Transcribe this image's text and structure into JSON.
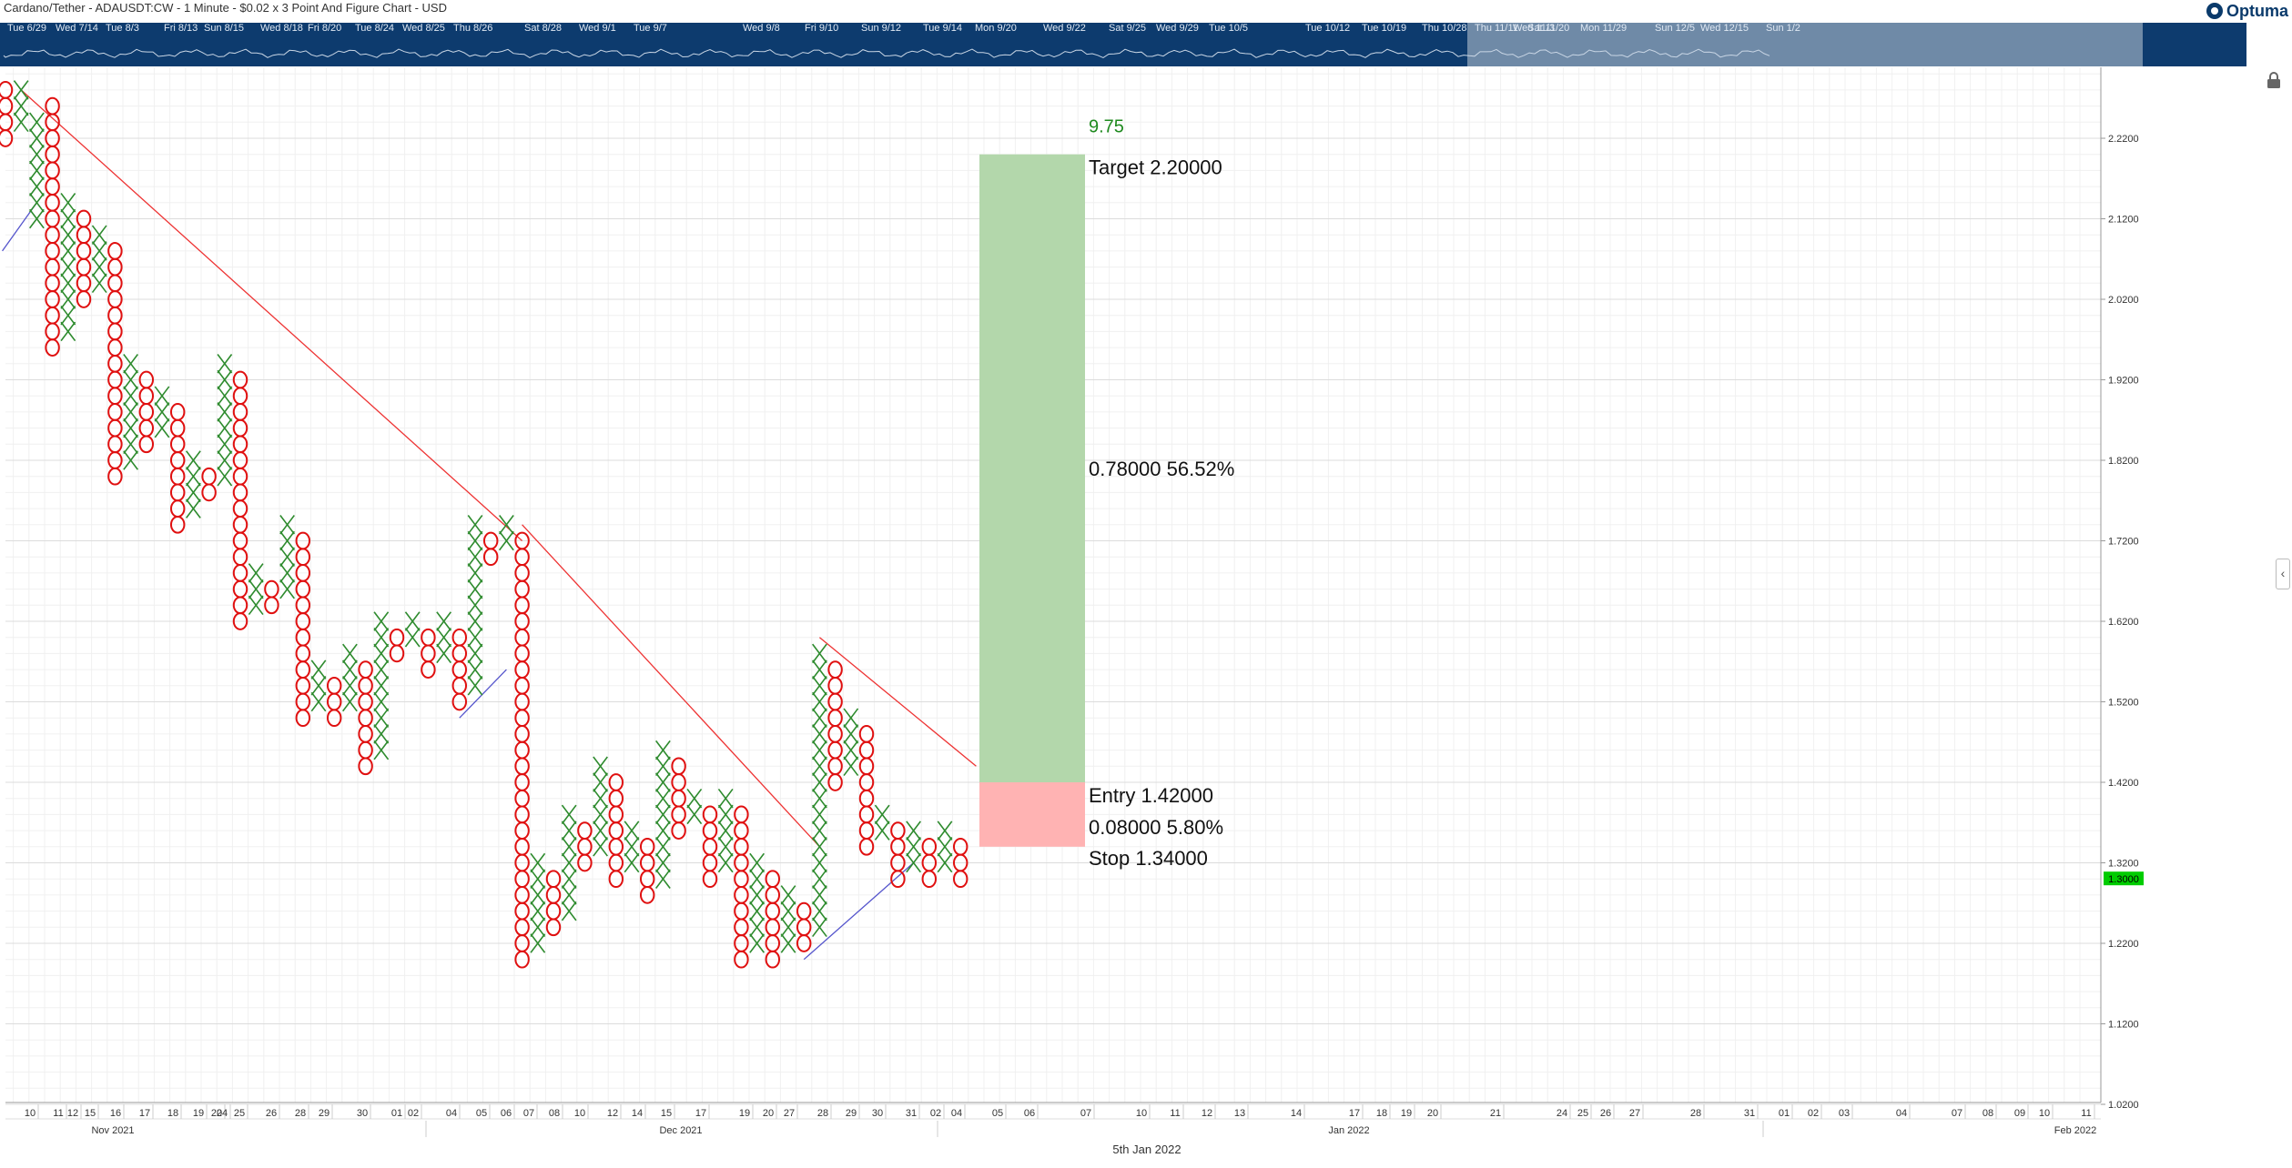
{
  "title": "Cardano/Tether - ADAUSDT:CW - 1 Minute - $0.02 x 3 Point And Figure Chart - USD",
  "logo": "Optuma",
  "navigator_labels": [
    "Tue 6/29",
    "Wed 7/14",
    "Tue 8/3",
    "Fri 8/13",
    "Sun 8/15",
    "Wed 8/18",
    "Fri 8/20",
    "Tue 8/24",
    "Wed 8/25",
    "Thu 8/26",
    "Sat 8/28",
    "Wed 9/1",
    "Tue 9/7",
    "Wed 9/8",
    "Fri 9/10",
    "Sun 9/12",
    "Tue 9/14",
    "Mon 9/20",
    "Wed 9/22",
    "Sat 9/25",
    "Wed 9/29",
    "Tue 10/5",
    "Tue 10/12",
    "Tue 10/19",
    "Thu 10/28",
    "Wed 11/3",
    "Thu 11/11",
    "Sat 11/20",
    "Mon 11/29",
    "Sun 12/5",
    "Wed 12/15",
    "Sun 1/2"
  ],
  "date_footer": "5th Jan 2022",
  "current_price": "1.3000",
  "chart_data": {
    "type": "point-and-figure",
    "box_size": 0.02,
    "reversal": 3,
    "y_axis": {
      "ticks": [
        2.22,
        2.12,
        2.02,
        1.92,
        1.82,
        1.72,
        1.62,
        1.52,
        1.42,
        1.32,
        1.22,
        1.12,
        1.02
      ],
      "tick_labels": [
        "2.2200",
        "2.1200",
        "2.0200",
        "1.9200",
        "1.8200",
        "1.7200",
        "1.6200",
        "1.5200",
        "1.4200",
        "1.3200",
        "1.2200",
        "1.1200",
        "1.0200"
      ]
    },
    "x_axis": {
      "day_labels": [
        "10",
        "11",
        "12",
        "15",
        "16",
        "17",
        "18",
        "19",
        "20",
        "24",
        "25",
        "26",
        "28",
        "29",
        "30",
        "01",
        "02",
        "04",
        "05",
        "06",
        "07",
        "08",
        "10",
        "12",
        "14",
        "15",
        "17",
        "19",
        "20",
        "27",
        "28",
        "29",
        "30",
        "31",
        "02",
        "04",
        "05",
        "06",
        "07",
        "10",
        "11",
        "12",
        "13",
        "14",
        "17",
        "18",
        "19",
        "20",
        "21",
        "24",
        "25",
        "26",
        "27",
        "28",
        "31",
        "01",
        "02",
        "03",
        "04",
        "07",
        "08",
        "09",
        "10",
        "11"
      ],
      "month_labels": [
        "Nov 2021",
        "Dec 2021",
        "Jan 2022",
        "Feb 2022"
      ]
    },
    "columns": [
      {
        "type": "O",
        "high": 2.28,
        "low": 2.22
      },
      {
        "type": "X",
        "low": 2.24,
        "high": 2.28
      },
      {
        "type": "X",
        "low": 2.12,
        "high": 2.24
      },
      {
        "type": "O",
        "high": 2.26,
        "low": 1.96
      },
      {
        "type": "X",
        "low": 1.98,
        "high": 2.14
      },
      {
        "type": "O",
        "high": 2.12,
        "low": 2.02
      },
      {
        "type": "X",
        "low": 2.04,
        "high": 2.1
      },
      {
        "type": "O",
        "high": 2.08,
        "low": 1.8
      },
      {
        "type": "X",
        "low": 1.82,
        "high": 1.94
      },
      {
        "type": "O",
        "high": 1.92,
        "low": 1.84
      },
      {
        "type": "X",
        "low": 1.86,
        "high": 1.9
      },
      {
        "type": "O",
        "high": 1.88,
        "low": 1.74
      },
      {
        "type": "X",
        "low": 1.76,
        "high": 1.82
      },
      {
        "type": "O",
        "high": 1.8,
        "low": 1.78
      },
      {
        "type": "X",
        "low": 1.8,
        "high": 1.94
      },
      {
        "type": "O",
        "high": 1.92,
        "low": 1.62
      },
      {
        "type": "X",
        "low": 1.64,
        "high": 1.68
      },
      {
        "type": "O",
        "high": 1.66,
        "low": 1.64
      },
      {
        "type": "X",
        "low": 1.66,
        "high": 1.74
      },
      {
        "type": "O",
        "high": 1.72,
        "low": 1.5
      },
      {
        "type": "X",
        "low": 1.52,
        "high": 1.56
      },
      {
        "type": "O",
        "high": 1.54,
        "low": 1.5
      },
      {
        "type": "X",
        "low": 1.52,
        "high": 1.58
      },
      {
        "type": "O",
        "high": 1.56,
        "low": 1.44
      },
      {
        "type": "X",
        "low": 1.46,
        "high": 1.62
      },
      {
        "type": "O",
        "high": 1.6,
        "low": 1.58
      },
      {
        "type": "X",
        "low": 1.6,
        "high": 1.62
      },
      {
        "type": "O",
        "high": 1.6,
        "low": 1.56
      },
      {
        "type": "X",
        "low": 1.58,
        "high": 1.62
      },
      {
        "type": "O",
        "high": 1.6,
        "low": 1.52
      },
      {
        "type": "X",
        "low": 1.54,
        "high": 1.74
      },
      {
        "type": "O",
        "high": 1.72,
        "low": 1.7
      },
      {
        "type": "X",
        "low": 1.72,
        "high": 1.74
      },
      {
        "type": "O",
        "high": 1.72,
        "low": 1.2
      },
      {
        "type": "X",
        "low": 1.22,
        "high": 1.32
      },
      {
        "type": "O",
        "high": 1.3,
        "low": 1.24
      },
      {
        "type": "X",
        "low": 1.26,
        "high": 1.38
      },
      {
        "type": "O",
        "high": 1.36,
        "low": 1.32
      },
      {
        "type": "X",
        "low": 1.34,
        "high": 1.44
      },
      {
        "type": "O",
        "high": 1.42,
        "low": 1.3
      },
      {
        "type": "X",
        "low": 1.32,
        "high": 1.36
      },
      {
        "type": "O",
        "high": 1.34,
        "low": 1.28
      },
      {
        "type": "X",
        "low": 1.3,
        "high": 1.46
      },
      {
        "type": "O",
        "high": 1.44,
        "low": 1.36
      },
      {
        "type": "X",
        "low": 1.38,
        "high": 1.4
      },
      {
        "type": "O",
        "high": 1.38,
        "low": 1.3
      },
      {
        "type": "X",
        "low": 1.32,
        "high": 1.4
      },
      {
        "type": "O",
        "high": 1.38,
        "low": 1.2
      },
      {
        "type": "X",
        "low": 1.22,
        "high": 1.32
      },
      {
        "type": "O",
        "high": 1.3,
        "low": 1.2
      },
      {
        "type": "X",
        "low": 1.22,
        "high": 1.28
      },
      {
        "type": "O",
        "high": 1.26,
        "low": 1.22
      },
      {
        "type": "X",
        "low": 1.24,
        "high": 1.58
      },
      {
        "type": "O",
        "high": 1.56,
        "low": 1.42
      },
      {
        "type": "X",
        "low": 1.44,
        "high": 1.5
      },
      {
        "type": "O",
        "high": 1.48,
        "low": 1.34
      },
      {
        "type": "X",
        "low": 1.36,
        "high": 1.38
      },
      {
        "type": "O",
        "high": 1.36,
        "low": 1.3
      },
      {
        "type": "X",
        "low": 1.32,
        "high": 1.36
      },
      {
        "type": "O",
        "high": 1.34,
        "low": 1.3
      },
      {
        "type": "X",
        "low": 1.32,
        "high": 1.36
      },
      {
        "type": "O",
        "high": 1.34,
        "low": 1.3
      }
    ],
    "trendlines": [
      {
        "color": "red",
        "from": {
          "col": 1,
          "price": 2.28
        },
        "to": {
          "col": 33,
          "price": 1.72
        }
      },
      {
        "color": "red",
        "from": {
          "col": 33,
          "price": 1.74
        },
        "to": {
          "col": 52,
          "price": 1.34
        }
      },
      {
        "color": "red",
        "from": {
          "col": 52,
          "price": 1.6
        },
        "to": {
          "col": 62,
          "price": 1.44
        }
      },
      {
        "color": "blue",
        "from": {
          "col": -0.2,
          "price": 2.08
        },
        "to": {
          "col": 2,
          "price": 2.14
        }
      },
      {
        "color": "blue",
        "from": {
          "col": 29,
          "price": 1.5
        },
        "to": {
          "col": 32,
          "price": 1.56
        }
      },
      {
        "color": "blue",
        "from": {
          "col": 51,
          "price": 1.2
        },
        "to": {
          "col": 58,
          "price": 1.32
        }
      }
    ],
    "trade_box": {
      "target": 2.2,
      "entry": 1.42,
      "stop": 1.34,
      "count_label": "9.75",
      "target_label": "Target  2.20000",
      "reward_label": "0.78000  56.52%",
      "entry_label": "Entry  1.42000",
      "risk_label": "0.08000  5.80%",
      "stop_label": "Stop  1.34000"
    }
  }
}
